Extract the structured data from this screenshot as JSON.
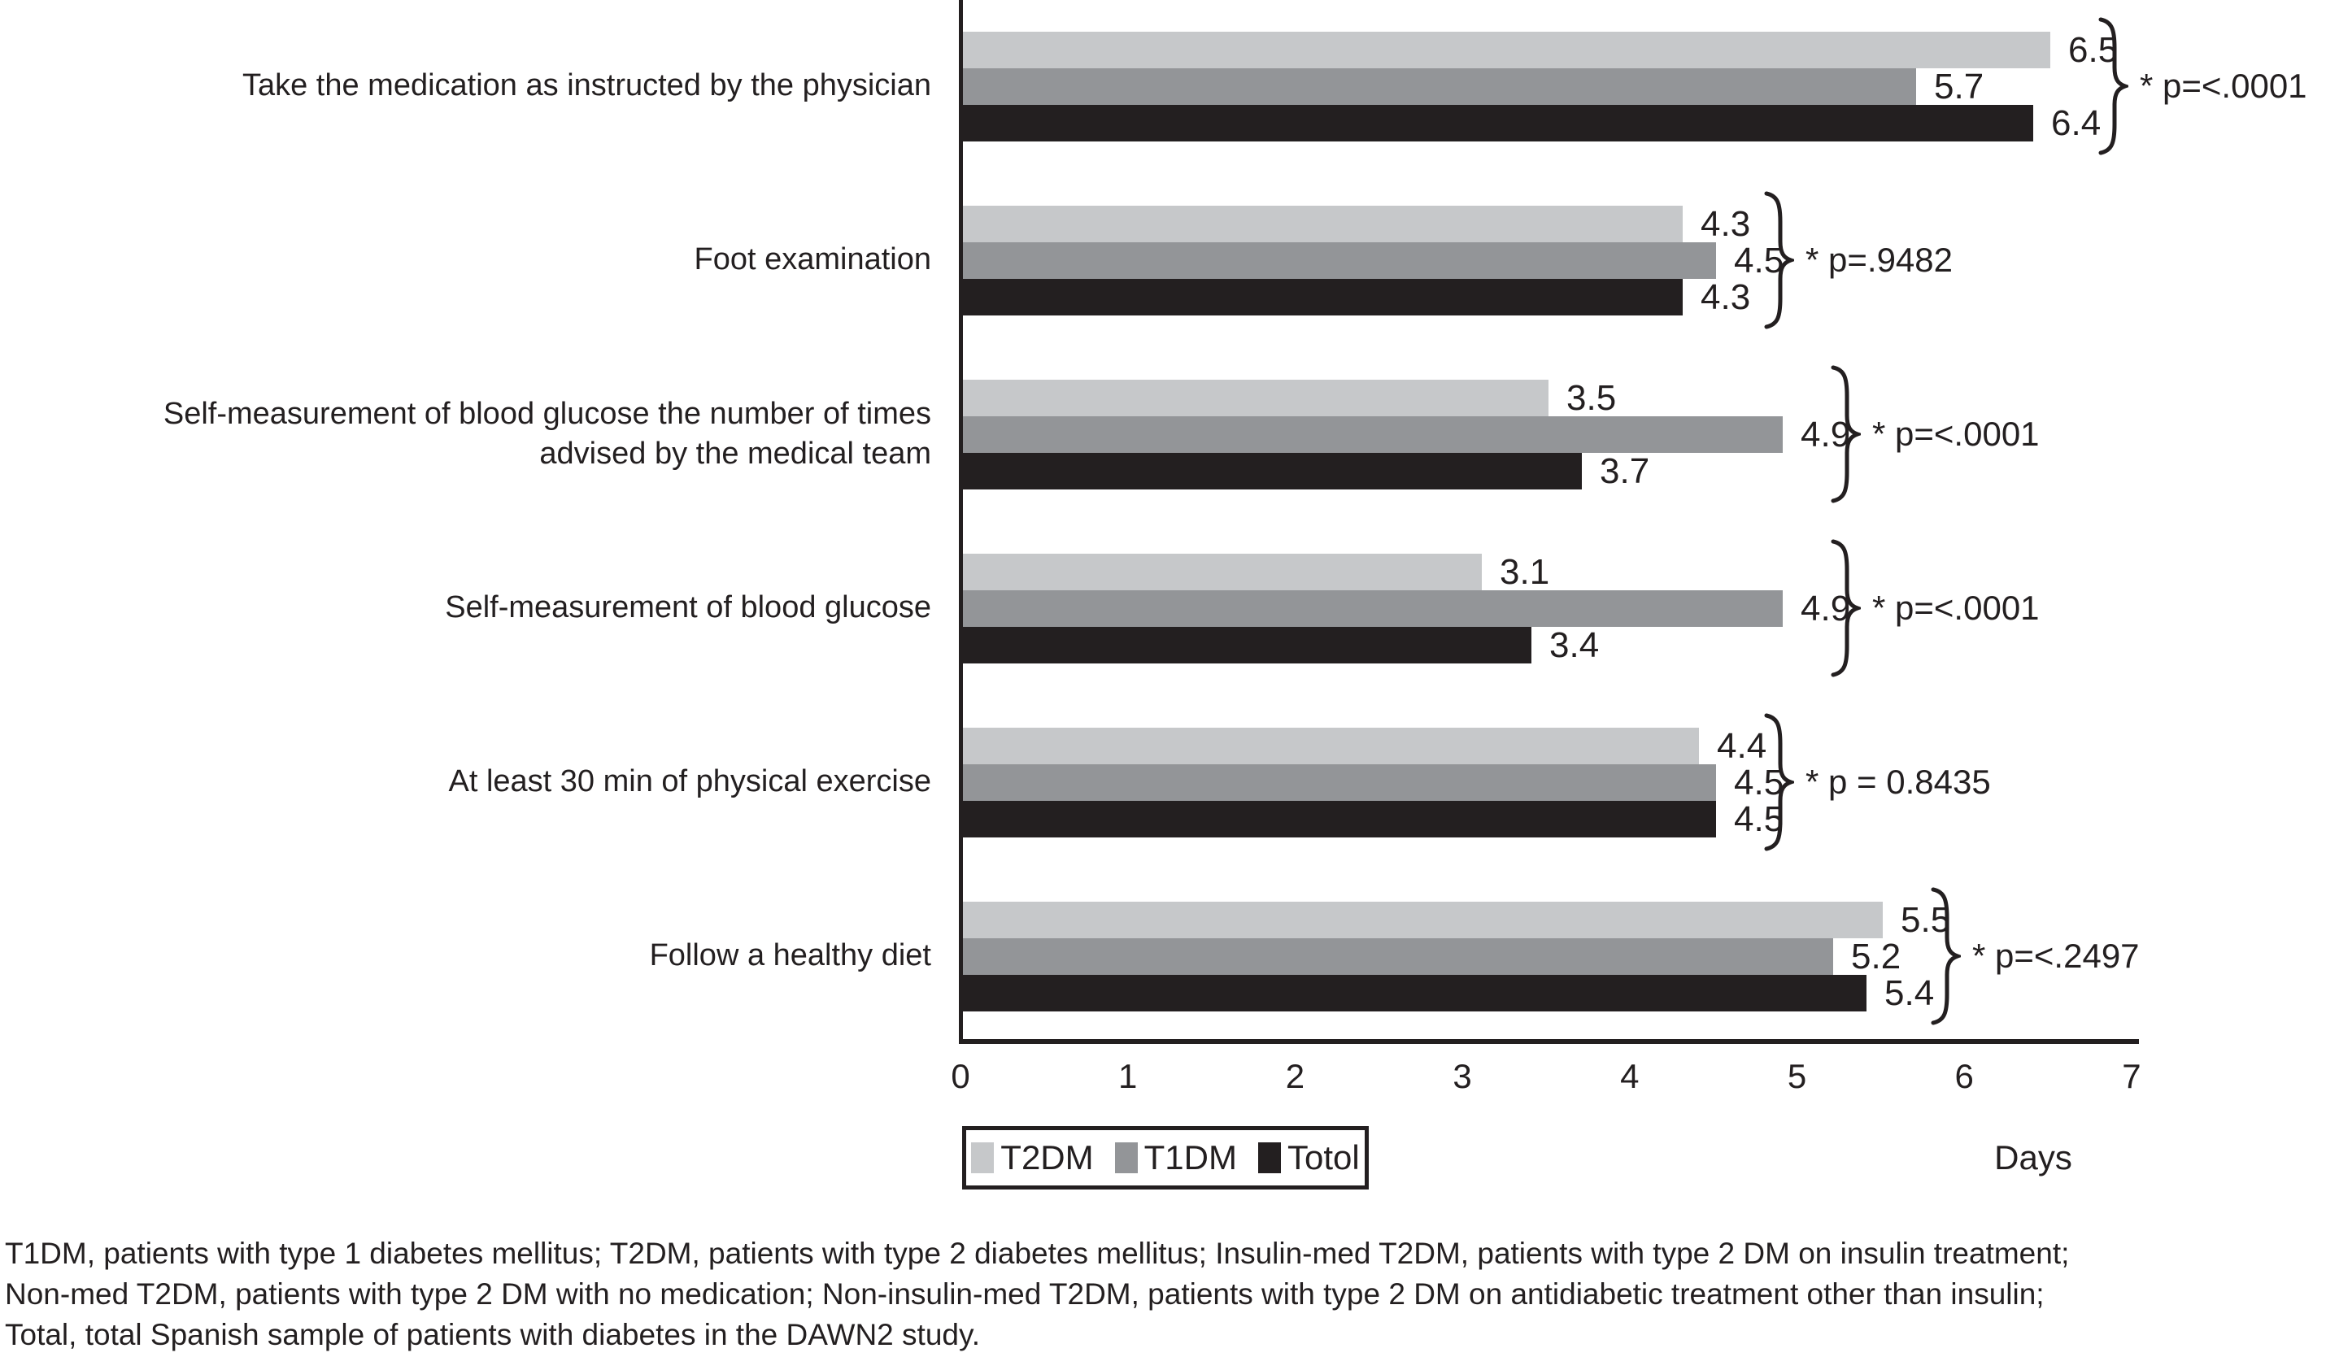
{
  "chart_data": {
    "type": "bar",
    "orientation": "horizontal",
    "title": "",
    "xlabel": "Days",
    "xlim": [
      0,
      7
    ],
    "x_ticks": [
      "0",
      "1",
      "2",
      "3",
      "4",
      "5",
      "6",
      "7"
    ],
    "grid": false,
    "legend_position": "bottom",
    "categories": [
      "Take the medication as instructed by the physician",
      "Foot examination",
      "Self-measurement of blood glucose the number of times advised by the medical team",
      "Self-measurement of blood glucose",
      "At least 30 min of physical exercise",
      "Follow a healthy diet"
    ],
    "series": [
      {
        "name": "T2DM",
        "color": "#c6c8ca",
        "values": [
          6.5,
          4.3,
          3.5,
          3.1,
          4.4,
          5.5
        ]
      },
      {
        "name": "T1DM",
        "color": "#939598",
        "values": [
          5.7,
          4.5,
          4.9,
          4.9,
          4.5,
          5.2
        ]
      },
      {
        "name": "Totol",
        "color": "#231f20",
        "values": [
          6.4,
          4.3,
          3.7,
          3.4,
          4.5,
          5.4
        ]
      }
    ],
    "p_values": [
      "* p=<.0001",
      "* p=.9482",
      "* p=<.0001",
      "* p=<.0001",
      "* p = 0.8435",
      "* p=<.2497"
    ]
  },
  "footnote": {
    "lines": [
      "T1DM, patients with type 1 diabetes mellitus; T2DM, patients with type 2 diabetes mellitus; Insulin-med T2DM, patients with type 2 DM on insulin treatment;",
      "Non-med T2DM, patients with type 2 DM with no medication; Non-insulin-med T2DM, patients with type 2 DM on antidiabetic treatment other than insulin;",
      "Total, total Spanish sample of patients with diabetes in the DAWN2 study."
    ]
  }
}
